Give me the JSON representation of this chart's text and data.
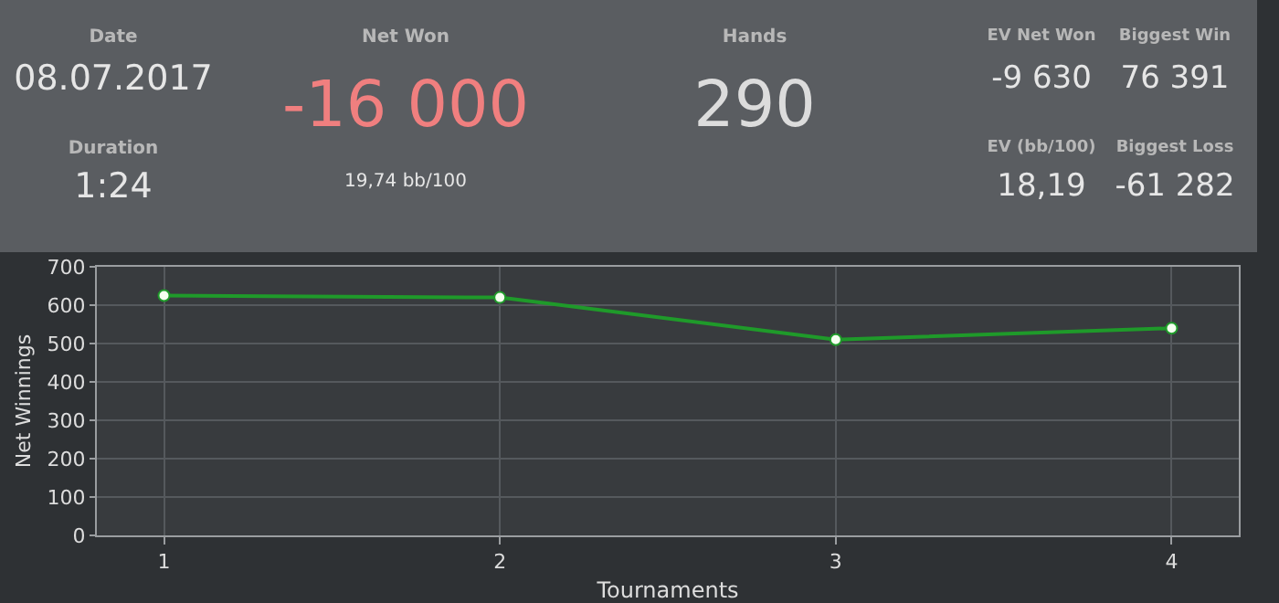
{
  "chart_data": [
    {
      "type": "other",
      "annotations": [
        "Date",
        "08.07.2017",
        "Duration",
        "1:24",
        "Net Won",
        "-16 000",
        "19,74 bb/100",
        "Hands",
        "290",
        "EV Net Won",
        "-9 630",
        "Biggest Win",
        "76 391",
        "EV (bb/100)",
        "18,19",
        "Biggest Loss",
        "-61 282"
      ]
    },
    {
      "type": "line",
      "x": [
        1,
        2,
        3,
        4
      ],
      "xlabel": "Tournaments",
      "ylabel": "Net Winnings",
      "series": [
        {
          "color": "#1f9a2a",
          "values": [
            625,
            620,
            510,
            540
          ]
        }
      ],
      "xlim": [
        0.8,
        4.2
      ],
      "xticks": [
        1,
        2,
        3,
        4
      ],
      "ylim": [
        0,
        700
      ],
      "yticks": [
        0,
        100,
        200,
        300,
        400,
        500,
        600,
        700
      ],
      "grid": true,
      "legend": false,
      "marker": "circle",
      "line_style": "solid"
    }
  ]
}
